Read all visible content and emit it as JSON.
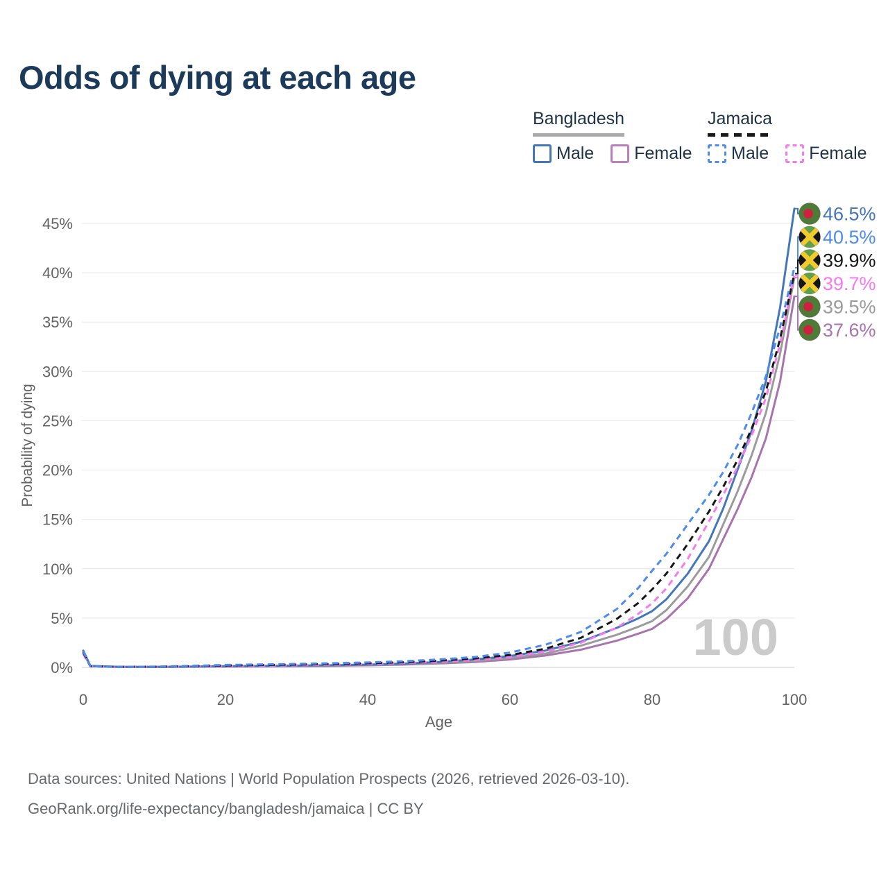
{
  "page": {
    "title": "Odds of dying at each age",
    "watermark": "100"
  },
  "legend": {
    "groups": [
      {
        "name": "Bangladesh",
        "line_style": "solid",
        "line_color": "#ababab",
        "items": [
          {
            "label": "Male",
            "color": "#4377ba"
          },
          {
            "label": "Female",
            "color": "#bb7ec0"
          }
        ]
      },
      {
        "name": "Jamaica",
        "line_style": "dashed",
        "line_color": "#1a1a1a",
        "items": [
          {
            "label": "Male",
            "color": "#4d8bf0"
          },
          {
            "label": "Female",
            "color": "#f878ee"
          }
        ]
      }
    ]
  },
  "footer": {
    "line1": "Data sources: United Nations | World Population Prospects (2026, retrieved 2026-03-10).",
    "line2": "GeoRank.org/life-expectancy/bangladesh/jamaica | CC BY"
  },
  "flags": {
    "bangladesh": {
      "field": "#4f7a38",
      "disc": "#d31f3f"
    },
    "jamaica": {
      "field": "#61a04b",
      "cross": "#f2ca2e",
      "sides": "#151515"
    }
  },
  "chart_data": {
    "type": "line",
    "title": "Odds of dying at each age",
    "xlabel": "Age",
    "ylabel": "Probability of dying",
    "xlim": [
      0,
      100
    ],
    "ylim": [
      0,
      47
    ],
    "grid": true,
    "legend_position": "top-right",
    "xticks": [
      {
        "value": 0,
        "label": "0"
      },
      {
        "value": 20,
        "label": "20"
      },
      {
        "value": 40,
        "label": "40"
      },
      {
        "value": 60,
        "label": "60"
      },
      {
        "value": 80,
        "label": "80"
      },
      {
        "value": 100,
        "label": "100"
      }
    ],
    "yticks": [
      {
        "value": 0,
        "label": "0%"
      },
      {
        "value": 5,
        "label": "5%"
      },
      {
        "value": 10,
        "label": "10%"
      },
      {
        "value": 15,
        "label": "15%"
      },
      {
        "value": 20,
        "label": "20%"
      },
      {
        "value": 25,
        "label": "25%"
      },
      {
        "value": 30,
        "label": "30%"
      },
      {
        "value": 35,
        "label": "35%"
      },
      {
        "value": 40,
        "label": "40%"
      },
      {
        "value": 45,
        "label": "45%"
      }
    ],
    "x": [
      0,
      1,
      5,
      10,
      15,
      20,
      25,
      30,
      35,
      40,
      45,
      50,
      55,
      60,
      65,
      70,
      75,
      78,
      80,
      82,
      85,
      88,
      90,
      92,
      94,
      96,
      98,
      100
    ],
    "series": [
      {
        "name": "Bangladesh Female",
        "country": "bangladesh",
        "sex": "female",
        "color": "#a873af",
        "dash": false,
        "end_label": "37.6%",
        "values": [
          1.5,
          0.13,
          0.04,
          0.04,
          0.06,
          0.08,
          0.1,
          0.13,
          0.16,
          0.21,
          0.28,
          0.4,
          0.55,
          0.8,
          1.2,
          1.8,
          2.7,
          3.4,
          3.9,
          4.9,
          7.0,
          10.0,
          13.0,
          16.0,
          19.3,
          23.2,
          29.0,
          37.6
        ]
      },
      {
        "name": "Bangladesh",
        "country": "bangladesh",
        "sex": "both",
        "color": "#9b9b9b",
        "dash": false,
        "end_label": "39.5%",
        "values": [
          1.6,
          0.14,
          0.05,
          0.05,
          0.07,
          0.1,
          0.12,
          0.15,
          0.19,
          0.24,
          0.33,
          0.47,
          0.65,
          0.95,
          1.4,
          2.2,
          3.3,
          4.1,
          4.7,
          5.8,
          8.2,
          11.2,
          14.5,
          17.8,
          21.5,
          25.8,
          31.8,
          39.5
        ]
      },
      {
        "name": "Bangladesh Male",
        "country": "bangladesh",
        "sex": "male",
        "color": "#4377ba",
        "dash": false,
        "end_label": "46.5%",
        "values": [
          1.7,
          0.15,
          0.05,
          0.05,
          0.08,
          0.12,
          0.15,
          0.18,
          0.22,
          0.28,
          0.38,
          0.55,
          0.8,
          1.15,
          1.7,
          2.6,
          4.0,
          4.95,
          5.7,
          6.9,
          9.5,
          12.8,
          16.1,
          20.0,
          24.0,
          29.0,
          36.5,
          46.5
        ]
      },
      {
        "name": "Jamaica Female",
        "country": "jamaica",
        "sex": "female",
        "color": "#f878ee",
        "dash": true,
        "end_label": "39.7%",
        "values": [
          1.35,
          0.1,
          0.05,
          0.06,
          0.09,
          0.13,
          0.17,
          0.21,
          0.27,
          0.34,
          0.44,
          0.58,
          0.75,
          1.05,
          1.6,
          2.5,
          4.0,
          5.4,
          6.5,
          8.0,
          11.0,
          14.8,
          17.5,
          20.3,
          23.5,
          27.3,
          32.8,
          39.7
        ]
      },
      {
        "name": "Jamaica",
        "country": "jamaica",
        "sex": "both",
        "color": "#161616",
        "dash": true,
        "end_label": "39.9%",
        "values": [
          1.5,
          0.11,
          0.06,
          0.07,
          0.12,
          0.2,
          0.24,
          0.28,
          0.34,
          0.42,
          0.52,
          0.68,
          0.9,
          1.25,
          1.9,
          3.0,
          4.9,
          6.5,
          7.9,
          9.5,
          12.5,
          15.8,
          18.3,
          21.0,
          24.2,
          28.0,
          33.3,
          39.9
        ]
      },
      {
        "name": "Jamaica Male",
        "country": "jamaica",
        "sex": "male",
        "color": "#4d8bf0",
        "dash": true,
        "end_label": "40.5%",
        "values": [
          1.6,
          0.12,
          0.06,
          0.08,
          0.15,
          0.25,
          0.3,
          0.35,
          0.42,
          0.5,
          0.62,
          0.8,
          1.05,
          1.5,
          2.3,
          3.6,
          5.9,
          8.0,
          9.8,
          11.5,
          14.5,
          17.5,
          19.8,
          22.5,
          25.8,
          29.5,
          34.5,
          40.5
        ]
      }
    ]
  }
}
